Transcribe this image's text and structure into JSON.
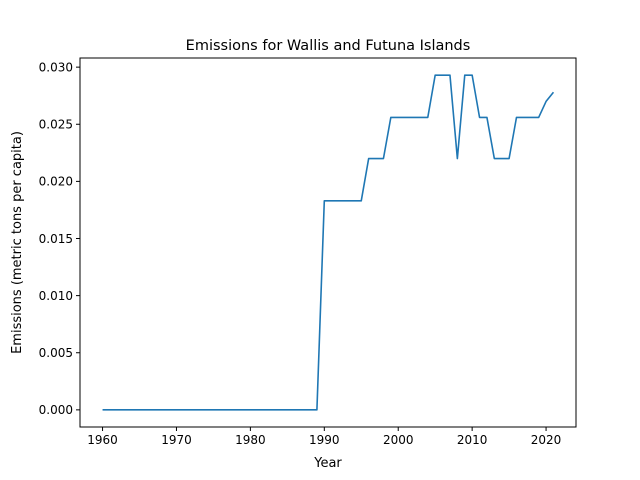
{
  "chart_data": {
    "type": "line",
    "title": "Emissions for Wallis and Futuna Islands",
    "xlabel": "Year",
    "ylabel": "Emissions (metric tons per capita)",
    "xlim": [
      1956.95,
      2024.05
    ],
    "ylim": [
      -0.0015,
      0.0308
    ],
    "xticks": [
      1960,
      1970,
      1980,
      1990,
      2000,
      2010,
      2020
    ],
    "xtick_labels": [
      "1960",
      "1970",
      "1980",
      "1990",
      "2000",
      "2010",
      "2020"
    ],
    "yticks": [
      0.0,
      0.005,
      0.01,
      0.015,
      0.02,
      0.025,
      0.03
    ],
    "ytick_labels": [
      "0.000",
      "0.005",
      "0.010",
      "0.015",
      "0.020",
      "0.025",
      "0.030"
    ],
    "grid": false,
    "legend": false,
    "series": [
      {
        "color": "#1f77b4",
        "x": [
          1960,
          1961,
          1962,
          1963,
          1964,
          1965,
          1966,
          1967,
          1968,
          1969,
          1970,
          1971,
          1972,
          1973,
          1974,
          1975,
          1976,
          1977,
          1978,
          1979,
          1980,
          1981,
          1982,
          1983,
          1984,
          1985,
          1986,
          1987,
          1988,
          1989,
          1990,
          1991,
          1992,
          1993,
          1994,
          1995,
          1996,
          1997,
          1998,
          1999,
          2000,
          2001,
          2002,
          2003,
          2004,
          2005,
          2006,
          2007,
          2008,
          2009,
          2010,
          2011,
          2012,
          2013,
          2014,
          2015,
          2016,
          2017,
          2018,
          2019,
          2020,
          2021
        ],
        "y": [
          0,
          0,
          0,
          0,
          0,
          0,
          0,
          0,
          0,
          0,
          0,
          0,
          0,
          0,
          0,
          0,
          0,
          0,
          0,
          0,
          0,
          0,
          0,
          0,
          0,
          0,
          0,
          0,
          0,
          0,
          0.0183,
          0.0183,
          0.0183,
          0.0183,
          0.0183,
          0.0183,
          0.022,
          0.022,
          0.022,
          0.0256,
          0.0256,
          0.0256,
          0.0256,
          0.0256,
          0.0256,
          0.0293,
          0.0293,
          0.0293,
          0.022,
          0.0293,
          0.0293,
          0.0256,
          0.0256,
          0.022,
          0.022,
          0.022,
          0.0256,
          0.0256,
          0.0256,
          0.0256,
          0.027,
          0.0278
        ]
      }
    ]
  }
}
